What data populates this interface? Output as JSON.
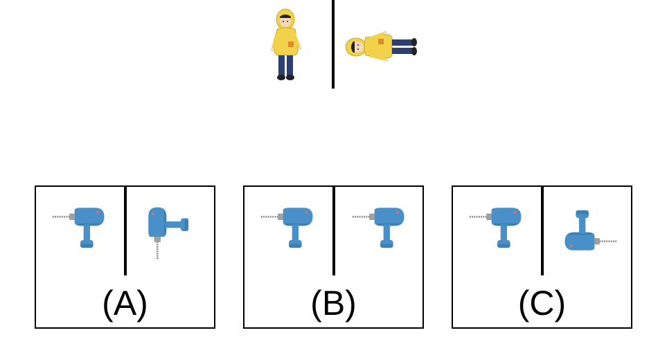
{
  "reference": {
    "figure_upright": "person-upright",
    "figure_rotated": "person-rotated-90"
  },
  "options": [
    {
      "label": "(A)",
      "left_image": "drill-upright",
      "right_image": "drill-rotated-90-ccw"
    },
    {
      "label": "(B)",
      "left_image": "drill-upright",
      "right_image": "drill-upright"
    },
    {
      "label": "(C)",
      "left_image": "drill-upright",
      "right_image": "drill-rotated-180"
    }
  ],
  "colors": {
    "drill_body": "#4a90c8",
    "drill_shadow": "#2f6f9e",
    "coat": "#f2d24a",
    "pants": "#2c3f70",
    "line": "#000000"
  }
}
